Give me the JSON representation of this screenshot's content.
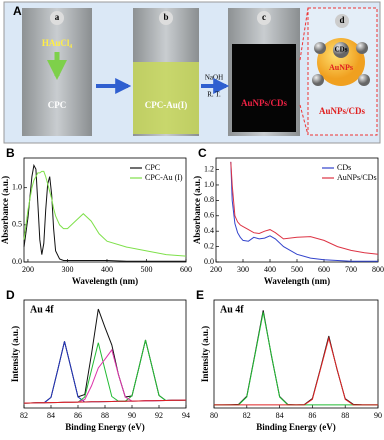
{
  "schematic": {
    "panel": "A",
    "vials": [
      {
        "letter": "a",
        "reagent": "HAuCl₄",
        "label": "CPC"
      },
      {
        "letter": "b",
        "label": "CPC-Au(I)"
      },
      {
        "letter": "c",
        "label": "AuNPs/CDs"
      }
    ],
    "condition": [
      "NaOH",
      "R. T."
    ],
    "inset": {
      "letter": "d",
      "core": "CDs",
      "shell": "AuNPs",
      "label": "AuNPs/CDs"
    }
  },
  "chart_data": [
    {
      "type": "line",
      "panel": "B",
      "x_label": "Wavelength (nm)",
      "y_label": "Absorbance (a.u.)",
      "xlim": [
        190,
        600
      ],
      "ylim": [
        0,
        1.4
      ],
      "xticks": [
        200,
        300,
        400,
        500,
        600
      ],
      "yticks": [
        {
          "value": 0,
          "label": "0.0"
        },
        0.5,
        {
          "value": 1,
          "label": "1.0"
        }
      ],
      "x": [
        190,
        200,
        210,
        215,
        220,
        225,
        230,
        235,
        240,
        245,
        250,
        255,
        260,
        265,
        270,
        280,
        290,
        300,
        320,
        340,
        360,
        380,
        400,
        450,
        500,
        550,
        600
      ],
      "series": [
        {
          "name": "CPC",
          "color": "#111111",
          "values": [
            0.2,
            0.6,
            1.15,
            1.3,
            1.25,
            0.8,
            0.3,
            0.1,
            0.25,
            0.7,
            1.05,
            1.15,
            0.9,
            0.45,
            0.15,
            0.04,
            0.02,
            0.02,
            0.02,
            0.02,
            0.02,
            0.02,
            0.02,
            0.01,
            0.01,
            0.01,
            0.01
          ]
        },
        {
          "name": "CPC-Au (I)",
          "color": "#7ee04a",
          "values": [
            0.3,
            0.7,
            1.0,
            1.1,
            1.15,
            1.2,
            1.2,
            1.22,
            1.22,
            1.15,
            1.05,
            0.95,
            0.85,
            0.72,
            0.62,
            0.5,
            0.45,
            0.45,
            0.55,
            0.65,
            0.55,
            0.38,
            0.28,
            0.2,
            0.15,
            0.1,
            0.08
          ]
        }
      ]
    },
    {
      "type": "line",
      "panel": "C",
      "x_label": "Wavelength (nm)",
      "y_label": "Absorbance (a.u.)",
      "xlim": [
        200,
        800
      ],
      "ylim": [
        0,
        1.35
      ],
      "xticks": [
        200,
        300,
        400,
        500,
        600,
        700,
        800
      ],
      "yticks": [
        {
          "value": 0,
          "label": "0.0"
        },
        0.2,
        0.4,
        0.6,
        0.8,
        {
          "value": 1,
          "label": "1.0"
        },
        1.2
      ],
      "x": [
        255,
        260,
        270,
        280,
        290,
        300,
        320,
        340,
        360,
        380,
        400,
        420,
        450,
        500,
        550,
        600,
        650,
        700,
        750,
        800
      ],
      "series": [
        {
          "name": "CDs",
          "color": "#3344cc",
          "values": [
            1.3,
            0.8,
            0.5,
            0.38,
            0.32,
            0.28,
            0.27,
            0.32,
            0.3,
            0.31,
            0.34,
            0.3,
            0.2,
            0.1,
            0.05,
            0.03,
            0.02,
            0.01,
            0.01,
            0.01
          ]
        },
        {
          "name": "AuNPs/CDs",
          "color": "#dd3344",
          "values": [
            1.3,
            1.0,
            0.6,
            0.52,
            0.48,
            0.46,
            0.42,
            0.38,
            0.37,
            0.4,
            0.42,
            0.38,
            0.3,
            0.32,
            0.33,
            0.28,
            0.2,
            0.15,
            0.12,
            0.1
          ]
        }
      ]
    },
    {
      "type": "line",
      "panel": "D",
      "annotation": "Au 4f",
      "x_label": "Binding Energy (eV)",
      "y_label": "Intensity (a.u.)",
      "xlim": [
        82,
        94
      ],
      "ylim": [
        0,
        110
      ],
      "xticks": [
        82,
        84,
        86,
        88,
        90,
        92,
        94
      ],
      "x": [
        82,
        82.5,
        83,
        83.5,
        84,
        84.5,
        85,
        85.5,
        86,
        86.5,
        87,
        87.5,
        88,
        88.5,
        89,
        89.5,
        90,
        90.5,
        91,
        91.5,
        92,
        92.5,
        93,
        93.5,
        94
      ],
      "series": [
        {
          "color": "#111111",
          "values": [
            5,
            5.1,
            5.3,
            5.4,
            10.8,
            39.1,
            67.8,
            39.4,
            11.3,
            13.8,
            54.9,
            100.7,
            82.1,
            64.3,
            33.8,
            11.2,
            12.3,
            40.6,
            69.3,
            40.9,
            12.8,
            7.6,
            7.8,
            7.9,
            8
          ]
        },
        {
          "color": "#2233bb",
          "values": [
            5,
            5.1,
            5.3,
            5.4,
            10.8,
            39.1,
            67.8,
            39.4,
            11.3,
            6.1,
            6.3,
            6.4,
            6.5,
            6.6,
            6.8,
            6.9,
            7,
            7.1,
            7.3,
            7.4,
            7.5,
            7.6,
            7.8,
            7.9,
            8
          ]
        },
        {
          "color": "#22bb33",
          "values": [
            5,
            5.1,
            5.3,
            5.4,
            5.5,
            5.6,
            5.8,
            5.9,
            6,
            11.2,
            38.7,
            66.4,
            38.9,
            11.7,
            6.8,
            6.9,
            12.3,
            40.6,
            69.3,
            40.9,
            12.8,
            7.6,
            7.8,
            7.9,
            8
          ]
        },
        {
          "color": "#dd33aa",
          "values": [
            5,
            5.1,
            5.3,
            5.4,
            5.5,
            5.6,
            5.8,
            5.9,
            6,
            8.7,
            22.5,
            40.7,
            49.7,
            59.2,
            33.8,
            11.2,
            7,
            7.1,
            7.3,
            7.4,
            7.5,
            7.6,
            7.8,
            7.9,
            8
          ]
        },
        {
          "color": "#dd2222",
          "values": [
            5,
            5.1,
            5.3,
            5.4,
            5.5,
            5.6,
            5.8,
            5.9,
            6,
            6.1,
            6.3,
            6.4,
            6.5,
            6.6,
            6.8,
            6.9,
            7,
            7.1,
            7.3,
            7.4,
            7.5,
            7.6,
            7.8,
            7.9,
            8
          ]
        }
      ]
    },
    {
      "type": "line",
      "panel": "E",
      "annotation": "Au 4f",
      "x_label": "Binding Energy (eV)",
      "y_label": "Intensity (a.u.)",
      "xlim": [
        80,
        90
      ],
      "ylim": [
        0,
        105
      ],
      "xticks": [
        80,
        82,
        84,
        86,
        88,
        90
      ],
      "x": [
        80,
        80.5,
        81,
        81.5,
        82,
        82.5,
        83,
        83.5,
        84,
        84.5,
        85,
        85.5,
        86,
        86.5,
        87,
        87.5,
        88,
        88.5,
        89,
        89.5,
        90
      ],
      "series": [
        {
          "color": "#111111",
          "values": [
            3,
            3,
            3.2,
            3.5,
            11.5,
            52.5,
            95,
            50.8,
            11.2,
            3.4,
            3,
            3.3,
            9.2,
            39,
            70,
            37.5,
            9,
            3.5,
            3.1,
            3,
            3
          ]
        },
        {
          "color": "#22bb33",
          "values": [
            3,
            3,
            3,
            3,
            10.7,
            51.6,
            93,
            51.6,
            10.7,
            3,
            3,
            3,
            3,
            3,
            3,
            3,
            3,
            3,
            3,
            3,
            3
          ]
        },
        {
          "color": "#dd2222",
          "values": [
            3,
            3,
            3,
            3,
            3,
            3,
            3,
            3,
            3,
            3,
            3,
            3,
            8.5,
            38.1,
            68,
            38.1,
            8.5,
            3,
            3,
            3,
            3
          ]
        }
      ]
    }
  ]
}
